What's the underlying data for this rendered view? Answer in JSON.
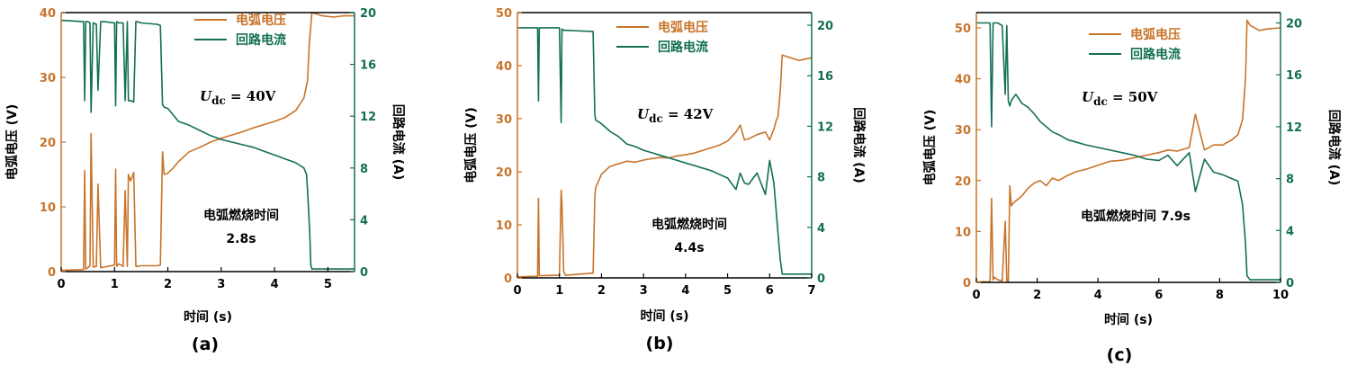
{
  "colors": {
    "voltage": "#C8742A",
    "current": "#137050",
    "axis": "#000000"
  },
  "panel_labels": [
    "(a)",
    "(b)",
    "(c)"
  ],
  "chart_data": [
    {
      "type": "line",
      "panel": "(a)",
      "xlabel": "时间 (s)",
      "ylabel_left": "电弧电压 (V)",
      "ylabel_right": "回路电流 (A)",
      "xlim": [
        0,
        5.5
      ],
      "ylim_left": [
        0,
        40
      ],
      "ylim_right": [
        0,
        20
      ],
      "xticks": [
        0,
        1,
        2,
        3,
        4,
        5
      ],
      "yticks_left": [
        0,
        10,
        20,
        30,
        40
      ],
      "yticks_right": [
        0,
        4,
        8,
        12,
        16,
        20
      ],
      "tick_labels_left": [
        "0",
        "10",
        "20",
        "30",
        "40"
      ],
      "tick_labels_right": [
        "0",
        "4",
        "8",
        "12",
        "16",
        "20"
      ],
      "legend": [
        "电弧电压",
        "回路电流"
      ],
      "annotation_udc": {
        "symbol": "U",
        "sub": "dc",
        "value": " = 40V"
      },
      "annotation_time": [
        "电弧燃烧时间",
        "2.8s"
      ],
      "series": [
        {
          "name": "电弧电压",
          "axis": "left",
          "x": [
            0,
            0.42,
            0.44,
            0.46,
            0.5,
            0.54,
            0.56,
            0.6,
            0.66,
            0.69,
            0.74,
            0.8,
            1.0,
            1.02,
            1.04,
            1.08,
            1.12,
            1.16,
            1.2,
            1.24,
            1.26,
            1.3,
            1.36,
            1.4,
            1.42,
            1.5,
            1.8,
            1.86,
            1.9,
            1.93,
            2.0,
            2.1,
            2.2,
            2.4,
            2.6,
            2.8,
            3.0,
            3.2,
            3.4,
            3.6,
            3.8,
            4.0,
            4.2,
            4.4,
            4.55,
            4.62,
            4.65,
            4.7,
            4.9,
            5.1,
            5.3,
            5.5
          ],
          "y": [
            0.2,
            0.3,
            15.6,
            0.4,
            0.6,
            0.9,
            21.3,
            0.7,
            0.8,
            13.5,
            0.6,
            0.7,
            1.0,
            15.8,
            0.8,
            1.2,
            1.0,
            0.8,
            12.5,
            0.8,
            15.0,
            14.0,
            15.3,
            0.8,
            0.8,
            0.9,
            0.9,
            1.0,
            18.5,
            15.0,
            15.2,
            16.0,
            17.0,
            18.5,
            19.2,
            20.0,
            20.6,
            21.1,
            21.6,
            22.2,
            22.7,
            23.2,
            23.8,
            24.9,
            26.8,
            29.5,
            35.0,
            40.0,
            39.5,
            39.3,
            39.5,
            39.5
          ]
        },
        {
          "name": "回路电流",
          "axis": "right",
          "x": [
            0,
            0.42,
            0.44,
            0.46,
            0.5,
            0.54,
            0.56,
            0.6,
            0.66,
            0.69,
            0.74,
            0.8,
            1.0,
            1.02,
            1.04,
            1.08,
            1.12,
            1.16,
            1.2,
            1.24,
            1.26,
            1.3,
            1.36,
            1.4,
            1.42,
            1.5,
            1.8,
            1.86,
            1.9,
            1.93,
            2.0,
            2.2,
            2.4,
            2.6,
            2.8,
            3.0,
            3.2,
            3.4,
            3.6,
            3.8,
            4.0,
            4.2,
            4.4,
            4.55,
            4.6,
            4.63,
            4.66,
            4.68,
            4.7,
            4.9,
            5.2,
            5.5
          ],
          "y": [
            19.4,
            19.3,
            13.2,
            19.3,
            19.3,
            19.2,
            12.3,
            19.2,
            19.1,
            14.0,
            19.3,
            19.3,
            19.2,
            12.8,
            19.3,
            19.2,
            19.2,
            19.2,
            13.2,
            19.3,
            13.2,
            13.2,
            13.1,
            19.3,
            19.3,
            19.2,
            19.1,
            19.0,
            12.9,
            12.7,
            12.6,
            11.6,
            11.3,
            10.9,
            10.5,
            10.2,
            10.0,
            9.8,
            9.6,
            9.3,
            9.0,
            8.7,
            8.4,
            8.0,
            7.5,
            5.5,
            3.0,
            0.5,
            0.2,
            0.2,
            0.2,
            0.2
          ]
        }
      ]
    },
    {
      "type": "line",
      "panel": "(b)",
      "xlabel": "时间 (s)",
      "ylabel_left": "电弧电压 (V)",
      "ylabel_right": "回路电流 (A)",
      "xlim": [
        0,
        7
      ],
      "ylim_left": [
        0,
        50
      ],
      "ylim_right": [
        0,
        21
      ],
      "xticks": [
        0,
        1,
        2,
        3,
        4,
        5,
        6,
        7
      ],
      "yticks_left": [
        0,
        10,
        20,
        30,
        40,
        50
      ],
      "yticks_right": [
        0,
        4,
        8,
        12,
        16,
        20
      ],
      "tick_labels_left": [
        "0",
        "10",
        "20",
        "30",
        "40",
        "50"
      ],
      "tick_labels_right": [
        "0",
        "4",
        "8",
        "12",
        "16",
        "20"
      ],
      "legend": [
        "电弧电压",
        "回路电流"
      ],
      "annotation_udc": {
        "symbol": "U",
        "sub": "dc",
        "value": " = 42V"
      },
      "annotation_time": [
        "电弧燃烧时间",
        "4.4s"
      ],
      "series": [
        {
          "name": "电弧电压",
          "axis": "left",
          "x": [
            0,
            0.48,
            0.5,
            0.52,
            1.0,
            1.04,
            1.06,
            1.1,
            1.14,
            1.8,
            1.84,
            1.86,
            2.0,
            2.2,
            2.4,
            2.6,
            2.8,
            3.0,
            3.2,
            3.4,
            3.6,
            3.8,
            4.0,
            4.2,
            4.4,
            4.6,
            4.8,
            5.0,
            5.2,
            5.3,
            5.4,
            5.5,
            5.7,
            5.9,
            6.0,
            6.1,
            6.15,
            6.2,
            6.25,
            6.3,
            6.5,
            6.7,
            7.0
          ],
          "y": [
            0.2,
            0.3,
            15.0,
            0.4,
            0.5,
            16.5,
            14.0,
            1.2,
            0.5,
            0.9,
            15.0,
            17.0,
            19.5,
            21.0,
            21.5,
            22.0,
            21.8,
            22.2,
            22.5,
            22.7,
            22.6,
            23.0,
            23.2,
            23.5,
            24.0,
            24.5,
            25.0,
            25.8,
            27.5,
            28.8,
            26.0,
            26.2,
            27.0,
            27.5,
            26.0,
            28.0,
            29.5,
            30.5,
            35.0,
            42.0,
            41.5,
            41.0,
            41.5
          ]
        },
        {
          "name": "回路电流",
          "axis": "right",
          "x": [
            0,
            0.48,
            0.5,
            0.52,
            1.0,
            1.04,
            1.06,
            1.1,
            1.14,
            1.8,
            1.84,
            1.86,
            2.0,
            2.2,
            2.4,
            2.6,
            2.8,
            3.0,
            3.2,
            3.4,
            3.6,
            3.8,
            4.0,
            4.2,
            4.4,
            4.6,
            4.8,
            5.0,
            5.2,
            5.3,
            5.4,
            5.5,
            5.7,
            5.9,
            6.0,
            6.1,
            6.15,
            6.2,
            6.25,
            6.3,
            6.5,
            6.7,
            7.0
          ],
          "y": [
            19.8,
            19.8,
            14.0,
            19.8,
            19.8,
            12.3,
            19.7,
            19.6,
            19.6,
            19.5,
            13.0,
            12.5,
            12.2,
            11.6,
            11.2,
            10.6,
            10.4,
            10.1,
            9.9,
            9.7,
            9.5,
            9.3,
            9.1,
            8.9,
            8.7,
            8.5,
            8.2,
            7.9,
            7.0,
            8.3,
            7.5,
            7.4,
            8.3,
            6.6,
            9.3,
            7.5,
            5.5,
            3.5,
            1.5,
            0.3,
            0.3,
            0.3,
            0.3
          ]
        }
      ]
    },
    {
      "type": "line",
      "panel": "(c)",
      "xlabel": "时间 (s)",
      "ylabel_left": "电弧电压 (V)",
      "ylabel_right": "回路电流 (A)",
      "xlim": [
        0,
        10
      ],
      "ylim_left": [
        0,
        53
      ],
      "ylim_right": [
        0,
        20.8
      ],
      "xticks": [
        0,
        2,
        4,
        6,
        8,
        10
      ],
      "yticks_left": [
        0,
        10,
        20,
        30,
        40,
        50
      ],
      "yticks_right": [
        0,
        4,
        8,
        12,
        16,
        20
      ],
      "tick_labels_left": [
        "0",
        "10",
        "20",
        "30",
        "40",
        "50"
      ],
      "tick_labels_right": [
        "0",
        "4",
        "8",
        "12",
        "16",
        "20"
      ],
      "legend": [
        "电弧电压",
        "回路电流"
      ],
      "annotation_udc": {
        "symbol": "U",
        "sub": "dc",
        "value": " = 50V"
      },
      "annotation_time": [
        "电弧燃烧时间 7.9s"
      ],
      "series": [
        {
          "name": "电弧电压",
          "axis": "left",
          "x": [
            0,
            0.45,
            0.5,
            0.55,
            0.6,
            0.7,
            0.85,
            0.95,
            1.0,
            1.05,
            1.1,
            1.15,
            1.2,
            1.3,
            1.5,
            1.7,
            1.9,
            2.1,
            2.3,
            2.5,
            2.7,
            3.0,
            3.3,
            3.6,
            4.0,
            4.4,
            4.8,
            5.2,
            5.6,
            6.0,
            6.3,
            6.6,
            7.0,
            7.2,
            7.5,
            7.8,
            8.1,
            8.4,
            8.6,
            8.75,
            8.85,
            8.9,
            9.0,
            9.3,
            9.6,
            10.0
          ],
          "y": [
            0.1,
            0.1,
            16.5,
            0.5,
            1.0,
            0.5,
            0.3,
            12.0,
            0.3,
            0.2,
            19.0,
            15.0,
            15.5,
            16.0,
            17.0,
            18.5,
            19.5,
            20.0,
            19.0,
            20.5,
            20.0,
            21.0,
            21.8,
            22.2,
            23.0,
            23.8,
            24.0,
            24.5,
            25.0,
            25.5,
            26.0,
            25.8,
            26.5,
            33.0,
            26.0,
            27.0,
            27.0,
            28.0,
            29.0,
            32.0,
            40.0,
            51.5,
            50.5,
            49.5,
            49.8,
            50.0
          ]
        },
        {
          "name": "回路电流",
          "axis": "right",
          "x": [
            0,
            0.45,
            0.5,
            0.55,
            0.6,
            0.7,
            0.85,
            0.95,
            1.0,
            1.05,
            1.1,
            1.15,
            1.2,
            1.3,
            1.5,
            1.7,
            1.9,
            2.1,
            2.3,
            2.5,
            2.7,
            3.0,
            3.3,
            3.6,
            4.0,
            4.4,
            4.8,
            5.2,
            5.6,
            6.0,
            6.3,
            6.6,
            7.0,
            7.2,
            7.5,
            7.8,
            8.1,
            8.4,
            8.6,
            8.75,
            8.85,
            8.9,
            9.0,
            9.3,
            9.6,
            10.0
          ],
          "y": [
            20.0,
            20.0,
            12.0,
            20.0,
            20.0,
            20.0,
            19.8,
            14.5,
            19.8,
            14.0,
            13.6,
            14.0,
            14.2,
            14.5,
            13.8,
            13.5,
            13.0,
            12.4,
            12.0,
            11.6,
            11.4,
            11.0,
            10.8,
            10.6,
            10.4,
            10.2,
            10.0,
            9.8,
            9.5,
            9.4,
            9.8,
            9.0,
            10.0,
            7.0,
            9.5,
            8.5,
            8.3,
            8.0,
            7.8,
            6.0,
            3.0,
            0.5,
            0.2,
            0.2,
            0.2,
            0.2
          ]
        }
      ]
    }
  ]
}
